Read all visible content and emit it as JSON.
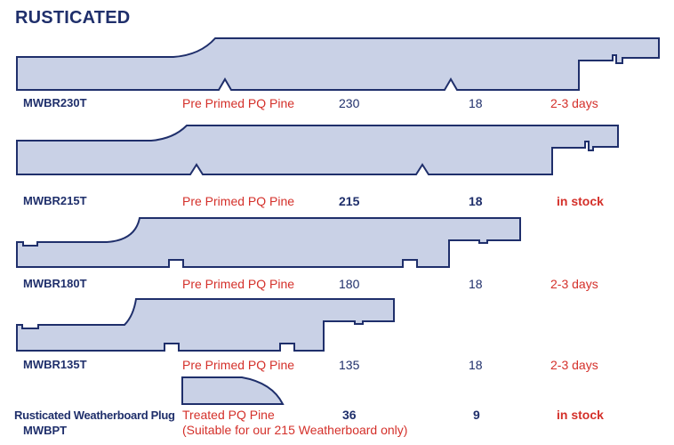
{
  "heading": "RUSTICATED",
  "products": [
    {
      "code": "MWBR230T",
      "material": "Pre Primed PQ Pine",
      "width": "230",
      "thickness": "18",
      "lead": "2-3 days"
    },
    {
      "code": "MWBR215T",
      "material": "Pre Primed PQ Pine",
      "width": "215",
      "thickness": "18",
      "lead": "in stock"
    },
    {
      "code": "MWBR180T",
      "material": "Pre Primed PQ Pine",
      "width": "180",
      "thickness": "18",
      "lead": "2-3 days"
    },
    {
      "code": "MWBR135T",
      "material": "Pre Primed PQ Pine",
      "width": "135",
      "thickness": "18",
      "lead": "2-3 days"
    }
  ],
  "plug": {
    "name": "Rusticated Weatherboard Plug",
    "code": "MWBPT",
    "material": "Treated PQ Pine",
    "note": "(Suitable for our 215 Weatherboard only)",
    "width": "36",
    "thickness": "9",
    "lead": "in stock"
  },
  "colors": {
    "navy": "#1f2f6b",
    "red": "#d4302a",
    "fill": "#c9d1e6"
  }
}
